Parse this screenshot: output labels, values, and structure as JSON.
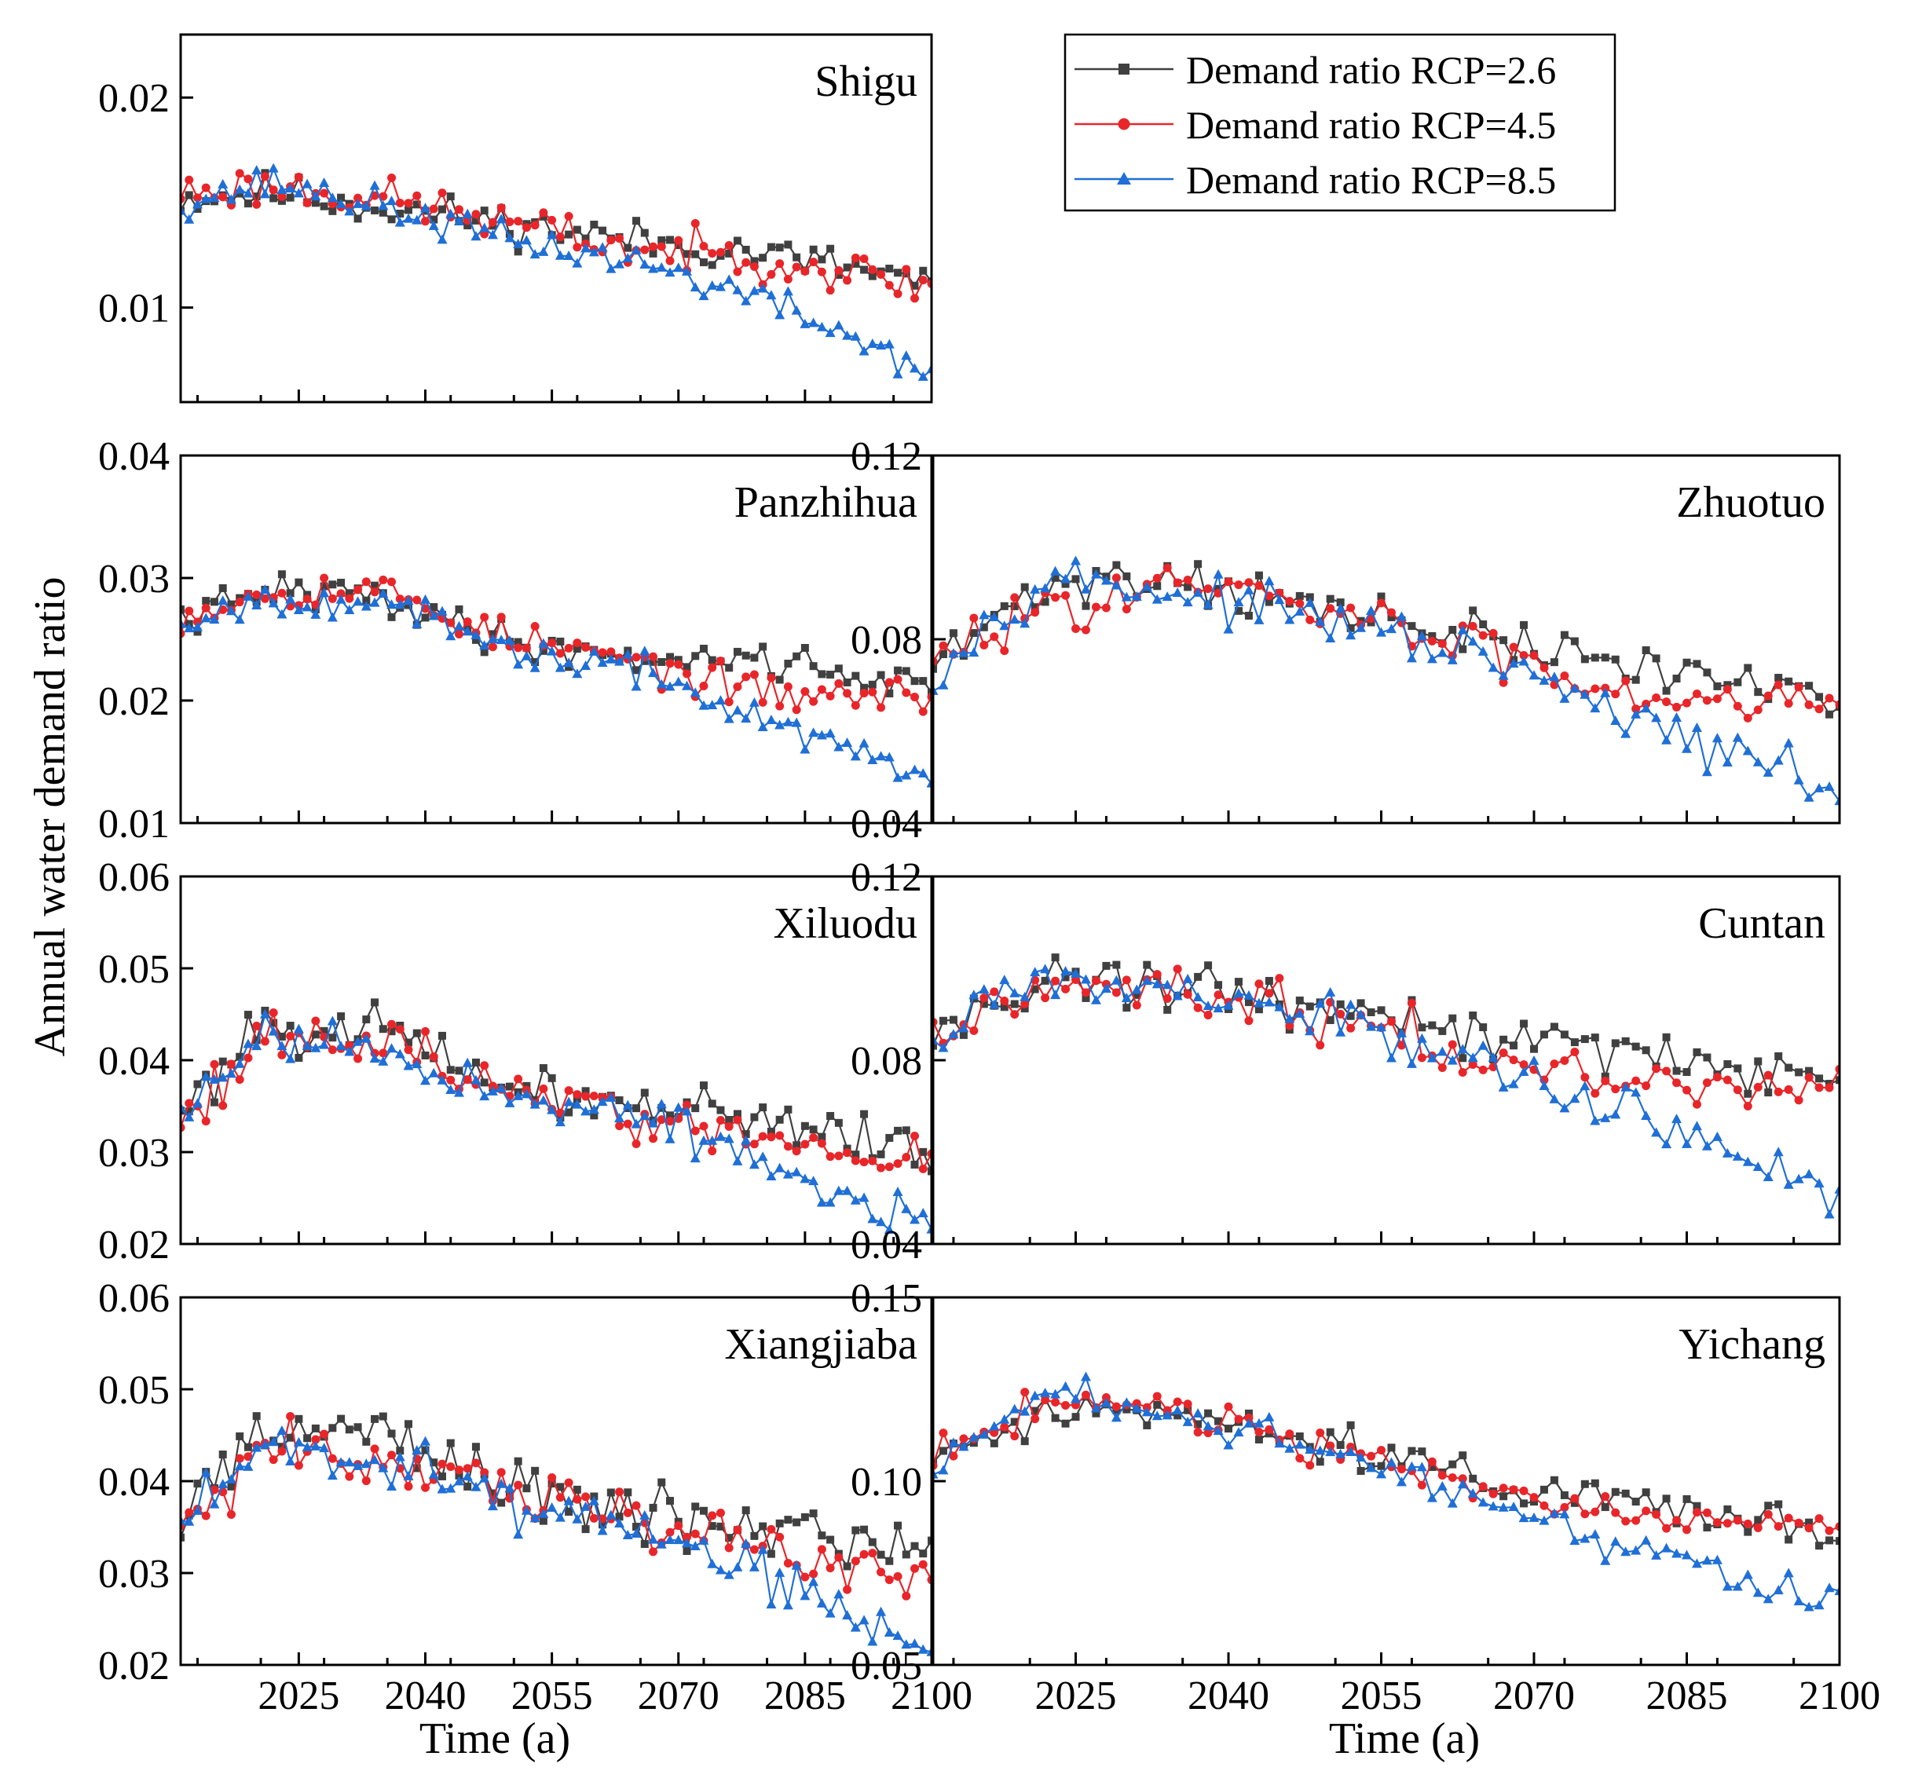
{
  "chart_data": {
    "type": "line",
    "ylabel": "Annual water demand ratio",
    "xlabel": "Time (a)",
    "x_ticks": [
      2025,
      2040,
      2055,
      2070,
      2085,
      2100
    ],
    "xlim": [
      2011,
      2100
    ],
    "legend": [
      {
        "name": "Demand ratio RCP=2.6",
        "color": "#404040",
        "marker": "square"
      },
      {
        "name": "Demand ratio RCP=4.5",
        "color": "#e8262a",
        "marker": "circle"
      },
      {
        "name": "Demand ratio RCP=8.5",
        "color": "#1f6fd6",
        "marker": "triangle"
      }
    ],
    "panels": [
      {
        "id": "shigu",
        "title": "Shigu",
        "ylim": [
          0.0055,
          0.023
        ],
        "yticks": [
          0.01,
          0.02
        ],
        "ytick_labels": [
          "0.01",
          "0.02"
        ],
        "trend": [
          {
            "anchors": [
              [
                2011,
                0.0152
              ],
              [
                2022,
                0.0155
              ],
              [
                2035,
                0.0148
              ],
              [
                2050,
                0.014
              ],
              [
                2065,
                0.0132
              ],
              [
                2080,
                0.0126
              ],
              [
                2100,
                0.0112
              ]
            ],
            "noise": 0.0014,
            "seed": 11
          },
          {
            "anchors": [
              [
                2011,
                0.0155
              ],
              [
                2022,
                0.0158
              ],
              [
                2035,
                0.0152
              ],
              [
                2050,
                0.014
              ],
              [
                2065,
                0.0128
              ],
              [
                2080,
                0.0124
              ],
              [
                2100,
                0.011
              ]
            ],
            "noise": 0.0015,
            "seed": 23
          },
          {
            "anchors": [
              [
                2011,
                0.015
              ],
              [
                2022,
                0.016
              ],
              [
                2035,
                0.0148
              ],
              [
                2050,
                0.0132
              ],
              [
                2065,
                0.0122
              ],
              [
                2080,
                0.0104
              ],
              [
                2100,
                0.007
              ]
            ],
            "noise": 0.0012,
            "seed": 37
          }
        ]
      },
      {
        "id": "panzhihua",
        "title": "Panzhihua",
        "ylim": [
          0.01,
          0.04
        ],
        "yticks": [
          0.01,
          0.02,
          0.03,
          0.04
        ],
        "ytick_labels": [
          "0.01",
          "0.02",
          "0.03",
          "0.04"
        ],
        "trend": [
          {
            "anchors": [
              [
                2011,
                0.0265
              ],
              [
                2022,
                0.029
              ],
              [
                2035,
                0.0285
              ],
              [
                2050,
                0.0248
              ],
              [
                2065,
                0.0235
              ],
              [
                2080,
                0.0235
              ],
              [
                2100,
                0.021
              ]
            ],
            "noise": 0.0022,
            "seed": 41
          },
          {
            "anchors": [
              [
                2011,
                0.027
              ],
              [
                2022,
                0.029
              ],
              [
                2035,
                0.029
              ],
              [
                2050,
                0.025
              ],
              [
                2065,
                0.0232
              ],
              [
                2080,
                0.0205
              ],
              [
                2100,
                0.0205
              ]
            ],
            "noise": 0.0022,
            "seed": 53
          },
          {
            "anchors": [
              [
                2011,
                0.0265
              ],
              [
                2022,
                0.0285
              ],
              [
                2035,
                0.028
              ],
              [
                2050,
                0.024
              ],
              [
                2065,
                0.0225
              ],
              [
                2080,
                0.0185
              ],
              [
                2100,
                0.0135
              ]
            ],
            "noise": 0.002,
            "seed": 67
          }
        ]
      },
      {
        "id": "zhuotuo",
        "title": "Zhuotuo",
        "ylim": [
          0.04,
          0.12
        ],
        "yticks": [
          0.04,
          0.08,
          0.12
        ],
        "ytick_labels": [
          "0.04",
          "0.08",
          "0.12"
        ],
        "trend": [
          {
            "anchors": [
              [
                2011,
                0.074
              ],
              [
                2022,
                0.092
              ],
              [
                2035,
                0.094
              ],
              [
                2050,
                0.086
              ],
              [
                2065,
                0.08
              ],
              [
                2080,
                0.074
              ],
              [
                2100,
                0.068
              ]
            ],
            "noise": 0.008,
            "seed": 71
          },
          {
            "anchors": [
              [
                2011,
                0.074
              ],
              [
                2022,
                0.088
              ],
              [
                2035,
                0.092
              ],
              [
                2050,
                0.086
              ],
              [
                2065,
                0.078
              ],
              [
                2080,
                0.068
              ],
              [
                2100,
                0.068
              ]
            ],
            "noise": 0.008,
            "seed": 83
          },
          {
            "anchors": [
              [
                2011,
                0.073
              ],
              [
                2022,
                0.094
              ],
              [
                2035,
                0.09
              ],
              [
                2050,
                0.084
              ],
              [
                2065,
                0.076
              ],
              [
                2080,
                0.062
              ],
              [
                2100,
                0.047
              ]
            ],
            "noise": 0.007,
            "seed": 97
          }
        ]
      },
      {
        "id": "xiluodu",
        "title": "Xiluodu",
        "ylim": [
          0.02,
          0.06
        ],
        "yticks": [
          0.02,
          0.03,
          0.04,
          0.05,
          0.06
        ],
        "ytick_labels": [
          "0.02",
          "0.03",
          "0.04",
          "0.05",
          "0.06"
        ],
        "trend": [
          {
            "anchors": [
              [
                2011,
                0.034
              ],
              [
                2020,
                0.044
              ],
              [
                2035,
                0.043
              ],
              [
                2050,
                0.037
              ],
              [
                2065,
                0.035
              ],
              [
                2080,
                0.034
              ],
              [
                2100,
                0.03
              ]
            ],
            "noise": 0.004,
            "seed": 101
          },
          {
            "anchors": [
              [
                2011,
                0.034
              ],
              [
                2020,
                0.042
              ],
              [
                2035,
                0.042
              ],
              [
                2050,
                0.037
              ],
              [
                2065,
                0.034
              ],
              [
                2080,
                0.031
              ],
              [
                2100,
                0.029
              ]
            ],
            "noise": 0.004,
            "seed": 113
          },
          {
            "anchors": [
              [
                2011,
                0.034
              ],
              [
                2020,
                0.043
              ],
              [
                2035,
                0.041
              ],
              [
                2050,
                0.036
              ],
              [
                2065,
                0.034
              ],
              [
                2080,
                0.029
              ],
              [
                2100,
                0.021
              ]
            ],
            "noise": 0.0035,
            "seed": 127
          }
        ]
      },
      {
        "id": "cuntan",
        "title": "Cuntan",
        "ylim": [
          0.04,
          0.12
        ],
        "yticks": [
          0.04,
          0.08,
          0.12
        ],
        "ytick_labels": [
          "0.04",
          "0.08",
          "0.12"
        ],
        "trend": [
          {
            "anchors": [
              [
                2011,
                0.086
              ],
              [
                2022,
                0.098
              ],
              [
                2035,
                0.096
              ],
              [
                2050,
                0.091
              ],
              [
                2065,
                0.086
              ],
              [
                2080,
                0.082
              ],
              [
                2100,
                0.076
              ]
            ],
            "noise": 0.008,
            "seed": 131
          },
          {
            "anchors": [
              [
                2011,
                0.086
              ],
              [
                2022,
                0.096
              ],
              [
                2035,
                0.096
              ],
              [
                2050,
                0.09
              ],
              [
                2065,
                0.08
              ],
              [
                2080,
                0.075
              ],
              [
                2100,
                0.075
              ]
            ],
            "noise": 0.008,
            "seed": 149
          },
          {
            "anchors": [
              [
                2011,
                0.086
              ],
              [
                2022,
                0.1
              ],
              [
                2035,
                0.094
              ],
              [
                2050,
                0.089
              ],
              [
                2065,
                0.079
              ],
              [
                2080,
                0.068
              ],
              [
                2100,
                0.052
              ]
            ],
            "noise": 0.007,
            "seed": 157
          }
        ]
      },
      {
        "id": "xiangjiaba",
        "title": "Xiangjiaba",
        "ylim": [
          0.02,
          0.06
        ],
        "yticks": [
          0.02,
          0.03,
          0.04,
          0.05,
          0.06
        ],
        "ytick_labels": [
          "0.02",
          "0.03",
          "0.04",
          "0.05",
          "0.06"
        ],
        "trend": [
          {
            "anchors": [
              [
                2011,
                0.036
              ],
              [
                2020,
                0.046
              ],
              [
                2035,
                0.045
              ],
              [
                2050,
                0.04
              ],
              [
                2065,
                0.037
              ],
              [
                2080,
                0.035
              ],
              [
                2100,
                0.032
              ]
            ],
            "noise": 0.0045,
            "seed": 163
          },
          {
            "anchors": [
              [
                2011,
                0.035
              ],
              [
                2020,
                0.043
              ],
              [
                2035,
                0.043
              ],
              [
                2050,
                0.039
              ],
              [
                2065,
                0.036
              ],
              [
                2080,
                0.033
              ],
              [
                2100,
                0.03
              ]
            ],
            "noise": 0.0045,
            "seed": 173
          },
          {
            "anchors": [
              [
                2011,
                0.035
              ],
              [
                2020,
                0.044
              ],
              [
                2035,
                0.042
              ],
              [
                2050,
                0.038
              ],
              [
                2065,
                0.035
              ],
              [
                2080,
                0.03
              ],
              [
                2100,
                0.021
              ]
            ],
            "noise": 0.004,
            "seed": 181
          }
        ]
      },
      {
        "id": "yichang",
        "title": "Yichang",
        "ylim": [
          0.05,
          0.15
        ],
        "yticks": [
          0.05,
          0.1,
          0.15
        ],
        "ytick_labels": [
          "0.05",
          "0.10",
          "0.15"
        ],
        "trend": [
          {
            "anchors": [
              [
                2011,
                0.105
              ],
              [
                2022,
                0.12
              ],
              [
                2035,
                0.12
              ],
              [
                2050,
                0.11
              ],
              [
                2065,
                0.099
              ],
              [
                2080,
                0.095
              ],
              [
                2100,
                0.087
              ]
            ],
            "noise": 0.008,
            "seed": 191
          },
          {
            "anchors": [
              [
                2011,
                0.106
              ],
              [
                2022,
                0.122
              ],
              [
                2035,
                0.12
              ],
              [
                2050,
                0.11
              ],
              [
                2065,
                0.097
              ],
              [
                2080,
                0.09
              ],
              [
                2100,
                0.088
              ]
            ],
            "noise": 0.008,
            "seed": 197
          },
          {
            "anchors": [
              [
                2011,
                0.104
              ],
              [
                2022,
                0.124
              ],
              [
                2035,
                0.118
              ],
              [
                2050,
                0.108
              ],
              [
                2065,
                0.094
              ],
              [
                2080,
                0.082
              ],
              [
                2100,
                0.066
              ]
            ],
            "noise": 0.007,
            "seed": 211
          }
        ]
      }
    ]
  }
}
